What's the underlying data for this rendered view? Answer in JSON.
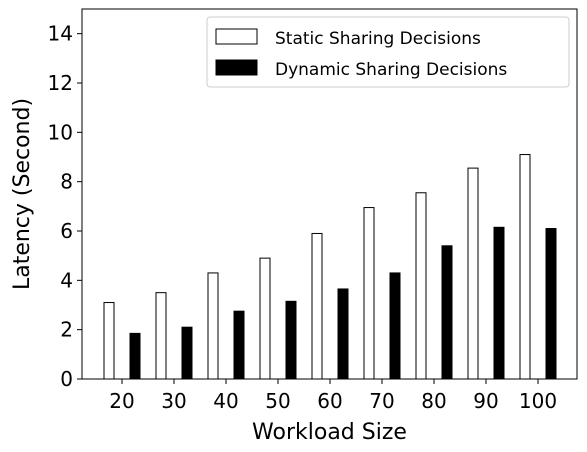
{
  "chart_data": {
    "type": "bar",
    "xlabel": "Workload Size",
    "ylabel": "Latency (Second)",
    "categories": [
      "20",
      "30",
      "40",
      "50",
      "60",
      "70",
      "80",
      "90",
      "100"
    ],
    "ylim": [
      0,
      15
    ],
    "yticks": [
      "0",
      "2",
      "4",
      "6",
      "8",
      "10",
      "12",
      "14"
    ],
    "grid": false,
    "legend_position": "top-right",
    "series": [
      {
        "name": "Static Sharing Decisions",
        "fill": "#ffffff",
        "stroke": "#000000",
        "values": [
          3.1,
          3.5,
          4.3,
          4.9,
          5.9,
          6.95,
          7.55,
          8.55,
          9.1
        ]
      },
      {
        "name": "Dynamic Sharing Decisions",
        "fill": "#000000",
        "stroke": "#000000",
        "values": [
          1.85,
          2.1,
          2.75,
          3.15,
          3.65,
          4.3,
          5.4,
          6.15,
          6.1
        ]
      }
    ]
  }
}
